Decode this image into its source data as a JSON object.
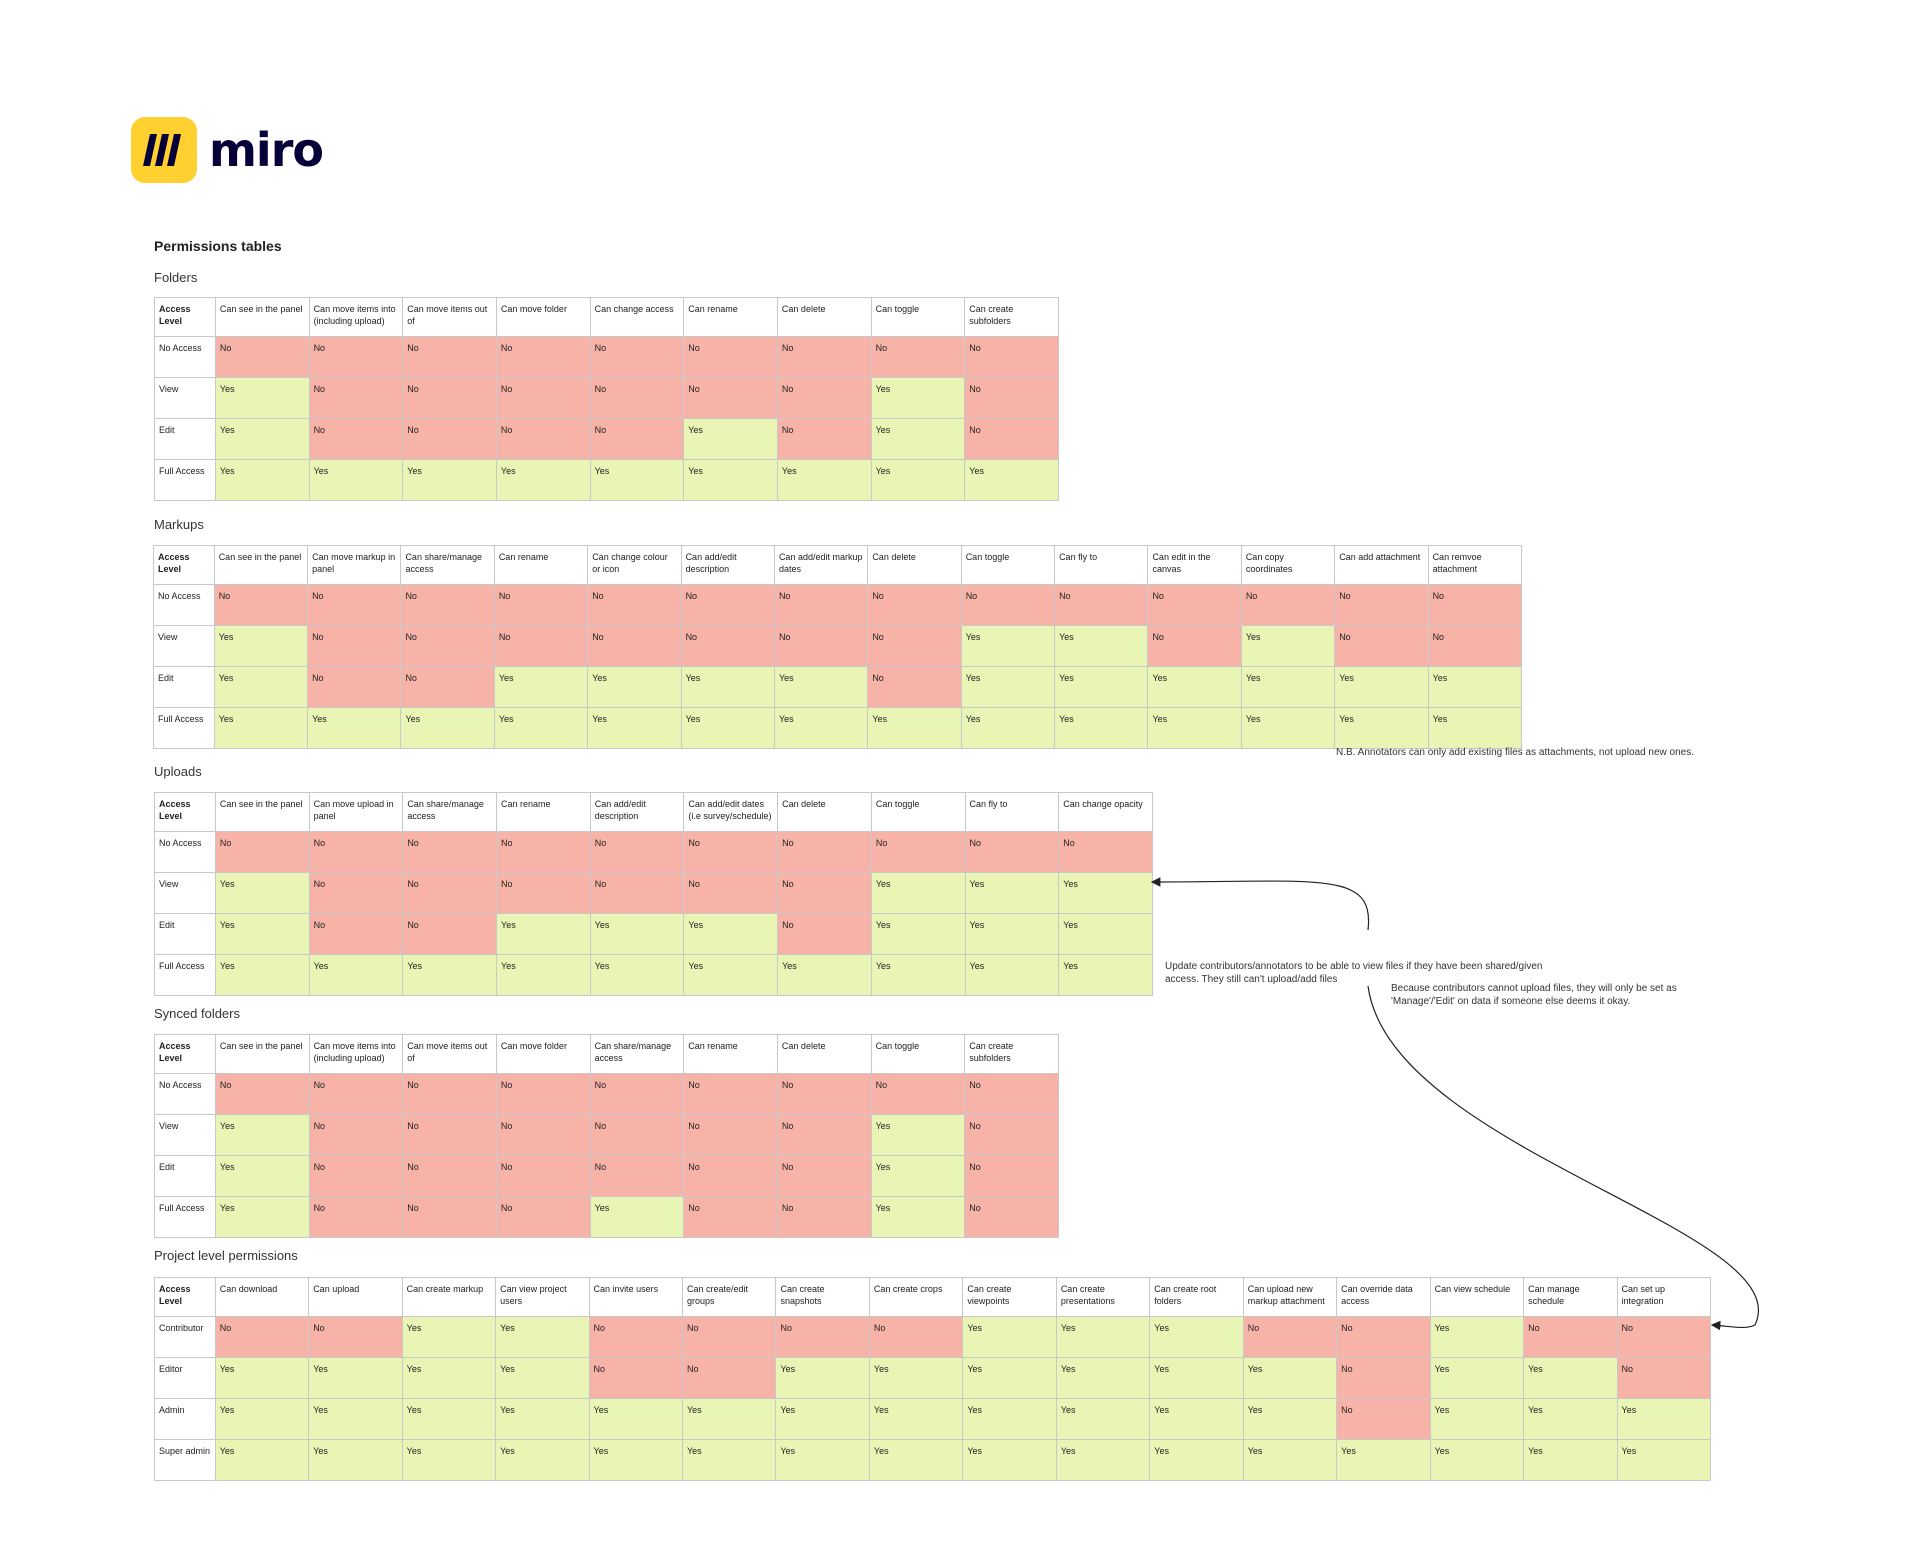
{
  "brand": {
    "name": "miro",
    "logo_color": "#ffd02f"
  },
  "page_title": "Permissions tables",
  "colors": {
    "yes": "#e8f5b5",
    "no": "#f8b3a8"
  },
  "tables": [
    {
      "key": "folders",
      "title": "Folders",
      "corner": "Access Level",
      "headers": [
        "Can see in the panel",
        "Can move items into (including upload)",
        "Can move items out of",
        "Can move folder",
        "Can change access",
        "Can rename",
        "Can delete",
        "Can toggle",
        "Can create subfolders"
      ],
      "rows": [
        {
          "label": "No Access",
          "cells": [
            "No",
            "No",
            "No",
            "No",
            "No",
            "No",
            "No",
            "No",
            "No"
          ]
        },
        {
          "label": "View",
          "cells": [
            "Yes",
            "No",
            "No",
            "No",
            "No",
            "No",
            "No",
            "Yes",
            "No"
          ]
        },
        {
          "label": "Edit",
          "cells": [
            "Yes",
            "No",
            "No",
            "No",
            "No",
            "Yes",
            "No",
            "Yes",
            "No"
          ]
        },
        {
          "label": "Full Access",
          "cells": [
            "Yes",
            "Yes",
            "Yes",
            "Yes",
            "Yes",
            "Yes",
            "Yes",
            "Yes",
            "Yes"
          ]
        }
      ]
    },
    {
      "key": "markups",
      "title": "Markups",
      "corner": "Access Level",
      "headers": [
        "Can see in the panel",
        "Can move markup in panel",
        "Can share/manage access",
        "Can rename",
        "Can change colour or icon",
        "Can add/edit description",
        "Can add/edit markup dates",
        "Can delete",
        "Can toggle",
        "Can fly to",
        "Can edit in the canvas",
        "Can copy coordinates",
        "Can add attachment",
        "Can remvoe attachment"
      ],
      "rows": [
        {
          "label": "No Access",
          "cells": [
            "No",
            "No",
            "No",
            "No",
            "No",
            "No",
            "No",
            "No",
            "No",
            "No",
            "No",
            "No",
            "No",
            "No"
          ]
        },
        {
          "label": "View",
          "cells": [
            "Yes",
            "No",
            "No",
            "No",
            "No",
            "No",
            "No",
            "No",
            "Yes",
            "Yes",
            "No",
            "Yes",
            "No",
            "No"
          ]
        },
        {
          "label": "Edit",
          "cells": [
            "Yes",
            "No",
            "No",
            "Yes",
            "Yes",
            "Yes",
            "Yes",
            "No",
            "Yes",
            "Yes",
            "Yes",
            "Yes",
            "Yes",
            "Yes"
          ]
        },
        {
          "label": "Full Access",
          "cells": [
            "Yes",
            "Yes",
            "Yes",
            "Yes",
            "Yes",
            "Yes",
            "Yes",
            "Yes",
            "Yes",
            "Yes",
            "Yes",
            "Yes",
            "Yes",
            "Yes"
          ]
        }
      ]
    },
    {
      "key": "uploads",
      "title": "Uploads",
      "corner": "Access Level",
      "headers": [
        "Can see in the panel",
        "Can move upload in panel",
        "Can share/manage access",
        "Can rename",
        "Can add/edit description",
        "Can add/edit dates (i.e survey/schedule)",
        "Can delete",
        "Can toggle",
        "Can fly to",
        "Can change opacity"
      ],
      "rows": [
        {
          "label": "No Access",
          "cells": [
            "No",
            "No",
            "No",
            "No",
            "No",
            "No",
            "No",
            "No",
            "No",
            "No"
          ]
        },
        {
          "label": "View",
          "cells": [
            "Yes",
            "No",
            "No",
            "No",
            "No",
            "No",
            "No",
            "Yes",
            "Yes",
            "Yes"
          ]
        },
        {
          "label": "Edit",
          "cells": [
            "Yes",
            "No",
            "No",
            "Yes",
            "Yes",
            "Yes",
            "No",
            "Yes",
            "Yes",
            "Yes"
          ]
        },
        {
          "label": "Full Access",
          "cells": [
            "Yes",
            "Yes",
            "Yes",
            "Yes",
            "Yes",
            "Yes",
            "Yes",
            "Yes",
            "Yes",
            "Yes"
          ]
        }
      ]
    },
    {
      "key": "synced_folders",
      "title": "Synced folders",
      "corner": "Access Level",
      "headers": [
        "Can see in the panel",
        "Can move items into (including upload)",
        "Can move items out of",
        "Can move folder",
        "Can share/manage access",
        "Can rename",
        "Can delete",
        "Can toggle",
        "Can create subfolders"
      ],
      "rows": [
        {
          "label": "No Access",
          "cells": [
            "No",
            "No",
            "No",
            "No",
            "No",
            "No",
            "No",
            "No",
            "No"
          ]
        },
        {
          "label": "View",
          "cells": [
            "Yes",
            "No",
            "No",
            "No",
            "No",
            "No",
            "No",
            "Yes",
            "No"
          ]
        },
        {
          "label": "Edit",
          "cells": [
            "Yes",
            "No",
            "No",
            "No",
            "No",
            "No",
            "No",
            "Yes",
            "No"
          ]
        },
        {
          "label": "Full Access",
          "cells": [
            "Yes",
            "No",
            "No",
            "No",
            "Yes",
            "No",
            "No",
            "Yes",
            "No"
          ]
        }
      ]
    },
    {
      "key": "project_level",
      "title": "Project level permissions",
      "corner": "Access Level",
      "headers": [
        "Can download",
        "Can upload",
        "Can create markup",
        "Can view project users",
        "Can invite users",
        "Can create/edit groups",
        "Can create snapshots",
        "Can create crops",
        "Can create viewpoints",
        "Can create presentations",
        "Can create root folders",
        "Can upload new markup attachment",
        "Can override data access",
        "Can view schedule",
        "Can manage schedule",
        "Can set up integration"
      ],
      "rows": [
        {
          "label": "Contributor",
          "cells": [
            "No",
            "No",
            "Yes",
            "Yes",
            "No",
            "No",
            "No",
            "No",
            "Yes",
            "Yes",
            "Yes",
            "No",
            "No",
            "Yes",
            "No",
            "No"
          ]
        },
        {
          "label": "Editor",
          "cells": [
            "Yes",
            "Yes",
            "Yes",
            "Yes",
            "No",
            "No",
            "Yes",
            "Yes",
            "Yes",
            "Yes",
            "Yes",
            "Yes",
            "No",
            "Yes",
            "Yes",
            "No"
          ]
        },
        {
          "label": "Admin",
          "cells": [
            "Yes",
            "Yes",
            "Yes",
            "Yes",
            "Yes",
            "Yes",
            "Yes",
            "Yes",
            "Yes",
            "Yes",
            "Yes",
            "Yes",
            "No",
            "Yes",
            "Yes",
            "Yes"
          ]
        },
        {
          "label": "Super admin",
          "cells": [
            "Yes",
            "Yes",
            "Yes",
            "Yes",
            "Yes",
            "Yes",
            "Yes",
            "Yes",
            "Yes",
            "Yes",
            "Yes",
            "Yes",
            "Yes",
            "Yes",
            "Yes",
            "Yes"
          ]
        }
      ]
    }
  ],
  "notes": {
    "markups_nb": "N.B. Annotators can only add existing files as attachments, not upload new ones.",
    "uploads_update": "Update contributors/annotators to be able to view files if they have been shared/given access. They still can't upload/add files",
    "contributors": "Because contributors cannot upload files, they will only be set as 'Manage'/'Edit' on data if someone else deems it okay."
  }
}
